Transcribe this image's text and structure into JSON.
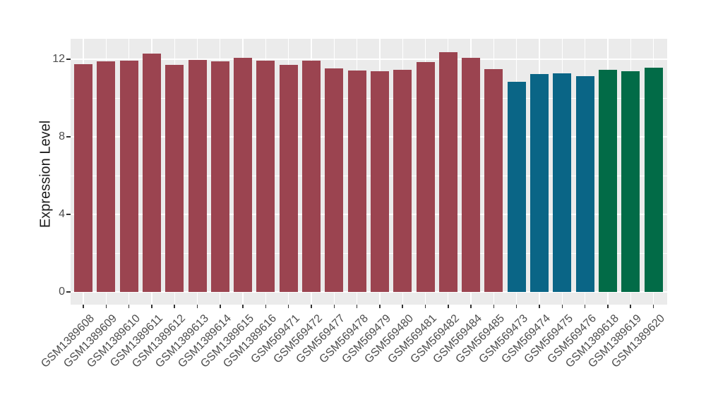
{
  "figure": {
    "background": "#FFFFFF",
    "panel_background": "#EBEBEB",
    "grid_color": "#FFFFFF",
    "tick_color": "#333333",
    "tick_label_color": "#4D4D4D"
  },
  "chart_data": {
    "type": "bar",
    "title": "",
    "xlabel": "",
    "ylabel": "Expression Level",
    "ylim": [
      -0.65,
      13.05
    ],
    "yticks": [
      0,
      4,
      8,
      12
    ],
    "yticks_minor": [
      2,
      6,
      10
    ],
    "grid": true,
    "legend": false,
    "x_tick_rotation_deg": 45,
    "categories": [
      "GSM1389608",
      "GSM1389609",
      "GSM1389610",
      "GSM1389611",
      "GSM1389612",
      "GSM1389613",
      "GSM1389614",
      "GSM1389615",
      "GSM1389616",
      "GSM569471",
      "GSM569472",
      "GSM569477",
      "GSM569478",
      "GSM569479",
      "GSM569480",
      "GSM569481",
      "GSM569482",
      "GSM569484",
      "GSM569485",
      "GSM569473",
      "GSM569474",
      "GSM569475",
      "GSM569476",
      "GSM1389618",
      "GSM1389619",
      "GSM1389620"
    ],
    "values": [
      11.73,
      11.9,
      11.91,
      12.3,
      11.72,
      11.97,
      11.88,
      12.08,
      11.92,
      11.72,
      11.91,
      11.53,
      11.42,
      11.37,
      11.44,
      11.87,
      12.38,
      12.07,
      11.5,
      10.85,
      11.25,
      11.28,
      11.13,
      11.45,
      11.4,
      11.58
    ],
    "palette": [
      "#9B4450",
      "#0A6586",
      "#026B47"
    ],
    "bar_colors": [
      "#9B4450",
      "#9B4450",
      "#9B4450",
      "#9B4450",
      "#9B4450",
      "#9B4450",
      "#9B4450",
      "#9B4450",
      "#9B4450",
      "#9B4450",
      "#9B4450",
      "#9B4450",
      "#9B4450",
      "#9B4450",
      "#9B4450",
      "#9B4450",
      "#9B4450",
      "#9B4450",
      "#9B4450",
      "#0A6586",
      "#0A6586",
      "#0A6586",
      "#0A6586",
      "#026B47",
      "#026B47",
      "#026B47"
    ]
  }
}
